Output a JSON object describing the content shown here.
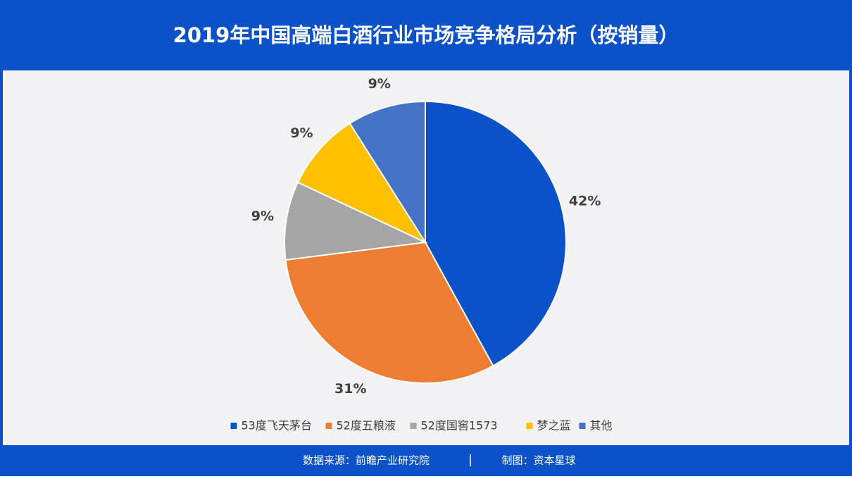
{
  "chart_data": {
    "type": "pie",
    "title": "2019年中国高端白酒行业市场竞争格局分析（按销量）",
    "categories": [
      "53度飞天茅台",
      "52度五粮液",
      "52度国窖1573",
      "梦之蓝",
      "其他"
    ],
    "values": [
      42,
      31,
      9,
      9,
      9
    ],
    "value_labels": [
      "42%",
      "31%",
      "9%",
      "9%",
      "9%"
    ],
    "colors": [
      "#0b52c9",
      "#ed7d31",
      "#a5a5a5",
      "#ffc000",
      "#4472c4"
    ],
    "legend": "bottom",
    "source": "数据来源：前瞻产业研究院",
    "credit": "制图：资本星球"
  }
}
